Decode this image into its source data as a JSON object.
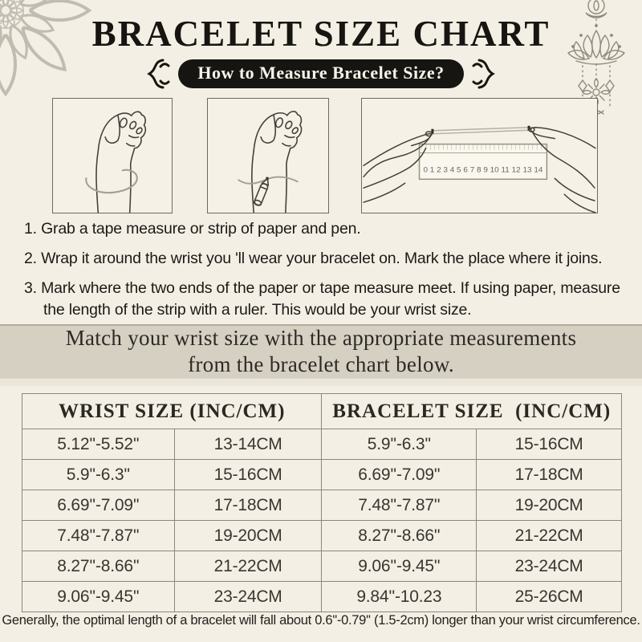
{
  "page": {
    "title": "BRACELET SIZE CHART",
    "badge_label": "How to Measure Bracelet Size?",
    "instructions": [
      "1. Grab a tape measure or strip of paper and pen.",
      "2. Wrap it around the wrist you 'll wear your bracelet on. Mark the place where it joins.",
      "3. Mark where the two ends of the paper or tape measure meet. If using paper, measure the length of the strip with a ruler. This would be your wrist size."
    ],
    "banner": {
      "line1": "Match your wrist size with the appropriate measurements",
      "line2": "from the bracelet chart below."
    },
    "footer_note": "Generally, the optimal length of a bracelet will fall about 0.6''-0.79'' (1.5-2cm) longer than your wrist circumference."
  },
  "illustration": {
    "ruler_numbers": "0 1 2 3 4 5 6 7 8 9 10 11 12 13 14",
    "captions": [
      "wrap-tape-around-wrist",
      "mark-wrist-with-pen",
      "measure-strip-with-ruler"
    ]
  },
  "chart_data": {
    "type": "table",
    "headers": [
      "WRIST SIZE (INC/CM)",
      "BRACELET SIZE  (INC/CM)"
    ],
    "columns": [
      "wrist_inches",
      "wrist_cm",
      "bracelet_inches",
      "bracelet_cm"
    ],
    "rows": [
      [
        "5.12''-5.52''",
        "13-14CM",
        "5.9''-6.3''",
        "15-16CM"
      ],
      [
        "5.9''-6.3''",
        "15-16CM",
        "6.69''-7.09''",
        "17-18CM"
      ],
      [
        "6.69''-7.09''",
        "17-18CM",
        "7.48''-7.87''",
        "19-20CM"
      ],
      [
        "7.48''-7.87''",
        "19-20CM",
        "8.27''-8.66''",
        "21-22CM"
      ],
      [
        "8.27''-8.66''",
        "21-22CM",
        "9.06''-9.45''",
        "23-24CM"
      ],
      [
        "9.06''-9.45''",
        "23-24CM",
        "9.84''-10.23",
        "25-26CM"
      ]
    ]
  },
  "colors": {
    "background": "#f3efe4",
    "ink": "#171511",
    "badge_bg": "#171511",
    "badge_text": "#f6f3e9",
    "banner_bg": "#d6d0c3",
    "table_border": "#8b877b",
    "table_text": "#383631",
    "ornament_stroke": "#8e897b",
    "mandala_stroke": "#c0bcb0",
    "sketch_stroke": "#43413b",
    "tape_stroke": "#a5a091"
  }
}
